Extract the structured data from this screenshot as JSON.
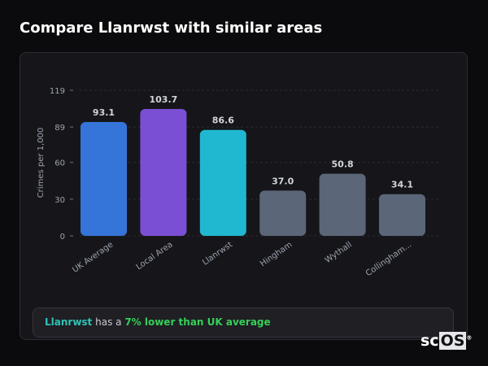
{
  "title": "Compare Llanrwst with similar areas",
  "chart_data": {
    "type": "bar",
    "title": "",
    "xlabel": "",
    "ylabel": "Crimes per 1,000",
    "ylim": [
      0,
      119
    ],
    "yticks": [
      0,
      30,
      60,
      89,
      119
    ],
    "grid": true,
    "categories": [
      "UK Average",
      "Local Area",
      "Llanrwst",
      "Hingham",
      "Wythall",
      "Collingham..."
    ],
    "values": [
      93.1,
      103.7,
      86.6,
      37.0,
      50.8,
      34.1
    ],
    "value_labels": [
      "93.1",
      "103.7",
      "86.6",
      "37.0",
      "50.8",
      "34.1"
    ],
    "colors": [
      "#3574d9",
      "#7b4fd4",
      "#20b8d0",
      "#5b6678",
      "#5b6678",
      "#5b6678"
    ]
  },
  "summary": {
    "area": "Llanrwst",
    "middle": " has a ",
    "comparison": "7% lower than UK average"
  },
  "logo": {
    "text": "scOS"
  }
}
